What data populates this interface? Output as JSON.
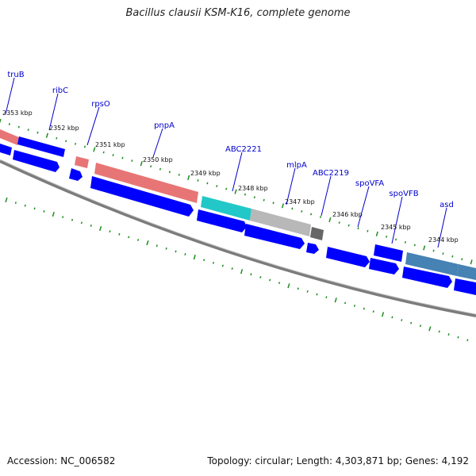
{
  "title": "Bacillus clausii KSM-K16, complete genome",
  "footer": {
    "accession": "Accession: NC_006582",
    "summary": "Topology: circular; Length: 4,303,871 bp; Genes: 4,192"
  },
  "colors": {
    "label": "#0000cc",
    "tick": "#1e8c1e",
    "cds": "#0000ff",
    "rrna": "#e87575",
    "cyan": "#22c8c8",
    "grey": "#b8b8b8",
    "dark": "#666666",
    "steel": "#4682b4",
    "backbone": "#808080"
  },
  "scale_labels": [
    "2353 kbp",
    "2352 kbp",
    "2351 kbp",
    "2350 kbp",
    "2349 kbp",
    "2348 kbp",
    "2347 kbp",
    "2346 kbp",
    "2345 kbp",
    "2344 kbp"
  ],
  "gene_labels": [
    "truB",
    "ribC",
    "rpsO",
    "pnpA",
    "ABC2221",
    "mlpA",
    "ABC2219",
    "spoVFA",
    "spoVFB",
    "asd"
  ]
}
